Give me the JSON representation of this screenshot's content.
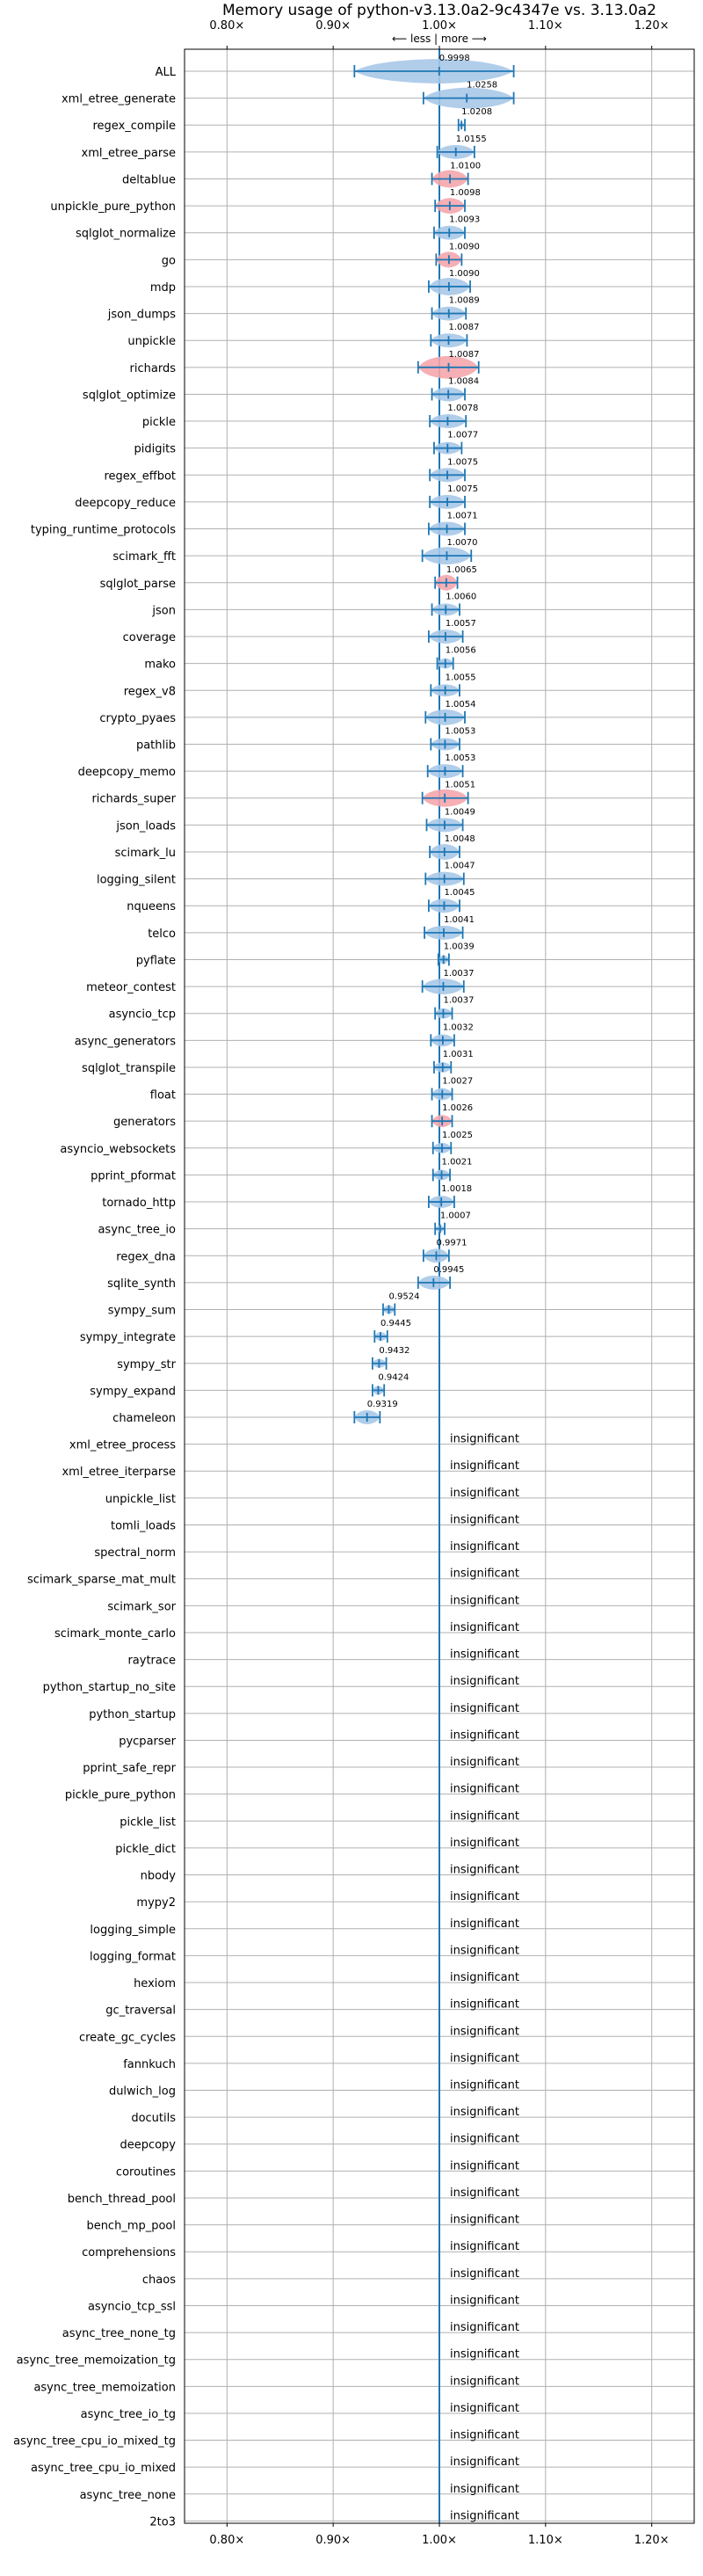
{
  "chart_data": {
    "type": "violin",
    "title": "Memory usage of python-v3.13.0a2-9c4347e vs. 3.13.0a2",
    "annotation": "⟵ less | more ⟶",
    "xlim": [
      0.76,
      1.24
    ],
    "xticks": [
      0.8,
      0.9,
      1.0,
      1.1,
      1.2
    ],
    "xtick_labels": [
      "0.80×",
      "0.90×",
      "1.00×",
      "1.10×",
      "1.20×"
    ],
    "reference_line": 1.0,
    "insignificant_text": "insignificant",
    "colors": {
      "line": "#1f77b4",
      "violin_default": "#a7c8e8",
      "violin_highlight": "#f4a6ad",
      "grid": "#b0b0b0"
    },
    "benchmarks": [
      {
        "name": "ALL",
        "value": 0.9998,
        "label": "0.9998",
        "lo": 0.92,
        "hi": 1.07,
        "color": "blue",
        "width": 14
      },
      {
        "name": "xml_etree_generate",
        "value": 1.0258,
        "label": "1.0258",
        "lo": 0.985,
        "hi": 1.07,
        "color": "blue",
        "width": 12
      },
      {
        "name": "regex_compile",
        "value": 1.0208,
        "label": "1.0208",
        "lo": 1.018,
        "hi": 1.024,
        "color": "blue",
        "width": 3
      },
      {
        "name": "xml_etree_parse",
        "value": 1.0155,
        "label": "1.0155",
        "lo": 0.998,
        "hi": 1.033,
        "color": "blue",
        "width": 8
      },
      {
        "name": "deltablue",
        "value": 1.01,
        "label": "1.0100",
        "lo": 0.993,
        "hi": 1.027,
        "color": "red",
        "width": 10
      },
      {
        "name": "unpickle_pure_python",
        "value": 1.0098,
        "label": "1.0098",
        "lo": 0.996,
        "hi": 1.024,
        "color": "red",
        "width": 9
      },
      {
        "name": "sqlglot_normalize",
        "value": 1.0093,
        "label": "1.0093",
        "lo": 0.995,
        "hi": 1.024,
        "color": "blue",
        "width": 8
      },
      {
        "name": "go",
        "value": 1.009,
        "label": "1.0090",
        "lo": 0.997,
        "hi": 1.021,
        "color": "red",
        "width": 9
      },
      {
        "name": "mdp",
        "value": 1.009,
        "label": "1.0090",
        "lo": 0.99,
        "hi": 1.029,
        "color": "blue",
        "width": 10
      },
      {
        "name": "json_dumps",
        "value": 1.0089,
        "label": "1.0089",
        "lo": 0.993,
        "hi": 1.025,
        "color": "blue",
        "width": 8
      },
      {
        "name": "unpickle",
        "value": 1.0087,
        "label": "1.0087",
        "lo": 0.992,
        "hi": 1.026,
        "color": "blue",
        "width": 8
      },
      {
        "name": "richards",
        "value": 1.0087,
        "label": "1.0087",
        "lo": 0.98,
        "hi": 1.037,
        "color": "red",
        "width": 13
      },
      {
        "name": "sqlglot_optimize",
        "value": 1.0084,
        "label": "1.0084",
        "lo": 0.993,
        "hi": 1.024,
        "color": "blue",
        "width": 8
      },
      {
        "name": "pickle",
        "value": 1.0078,
        "label": "1.0078",
        "lo": 0.991,
        "hi": 1.025,
        "color": "blue",
        "width": 8
      },
      {
        "name": "pidigits",
        "value": 1.0077,
        "label": "1.0077",
        "lo": 0.995,
        "hi": 1.021,
        "color": "blue",
        "width": 7
      },
      {
        "name": "regex_effbot",
        "value": 1.0075,
        "label": "1.0075",
        "lo": 0.991,
        "hi": 1.024,
        "color": "blue",
        "width": 8
      },
      {
        "name": "deepcopy_reduce",
        "value": 1.0075,
        "label": "1.0075",
        "lo": 0.991,
        "hi": 1.024,
        "color": "blue",
        "width": 8
      },
      {
        "name": "typing_runtime_protocols",
        "value": 1.0071,
        "label": "1.0071",
        "lo": 0.99,
        "hi": 1.024,
        "color": "blue",
        "width": 8
      },
      {
        "name": "scimark_fft",
        "value": 1.007,
        "label": "1.0070",
        "lo": 0.984,
        "hi": 1.03,
        "color": "blue",
        "width": 10
      },
      {
        "name": "sqlglot_parse",
        "value": 1.0065,
        "label": "1.0065",
        "lo": 0.996,
        "hi": 1.017,
        "color": "red",
        "width": 9
      },
      {
        "name": "json",
        "value": 1.006,
        "label": "1.0060",
        "lo": 0.993,
        "hi": 1.019,
        "color": "blue",
        "width": 7
      },
      {
        "name": "coverage",
        "value": 1.0057,
        "label": "1.0057",
        "lo": 0.99,
        "hi": 1.022,
        "color": "blue",
        "width": 8
      },
      {
        "name": "mako",
        "value": 1.0056,
        "label": "1.0056",
        "lo": 0.998,
        "hi": 1.013,
        "color": "blue",
        "width": 6
      },
      {
        "name": "regex_v8",
        "value": 1.0055,
        "label": "1.0055",
        "lo": 0.992,
        "hi": 1.019,
        "color": "blue",
        "width": 7
      },
      {
        "name": "crypto_pyaes",
        "value": 1.0054,
        "label": "1.0054",
        "lo": 0.987,
        "hi": 1.024,
        "color": "blue",
        "width": 9
      },
      {
        "name": "pathlib",
        "value": 1.0053,
        "label": "1.0053",
        "lo": 0.992,
        "hi": 1.019,
        "color": "blue",
        "width": 7
      },
      {
        "name": "deepcopy_memo",
        "value": 1.0053,
        "label": "1.0053",
        "lo": 0.989,
        "hi": 1.022,
        "color": "blue",
        "width": 8
      },
      {
        "name": "richards_super",
        "value": 1.0051,
        "label": "1.0051",
        "lo": 0.984,
        "hi": 1.027,
        "color": "red",
        "width": 10
      },
      {
        "name": "json_loads",
        "value": 1.0049,
        "label": "1.0049",
        "lo": 0.988,
        "hi": 1.022,
        "color": "blue",
        "width": 8
      },
      {
        "name": "scimark_lu",
        "value": 1.0048,
        "label": "1.0048",
        "lo": 0.991,
        "hi": 1.019,
        "color": "blue",
        "width": 9
      },
      {
        "name": "logging_silent",
        "value": 1.0047,
        "label": "1.0047",
        "lo": 0.987,
        "hi": 1.023,
        "color": "blue",
        "width": 8
      },
      {
        "name": "nqueens",
        "value": 1.0045,
        "label": "1.0045",
        "lo": 0.99,
        "hi": 1.019,
        "color": "blue",
        "width": 8
      },
      {
        "name": "telco",
        "value": 1.0041,
        "label": "1.0041",
        "lo": 0.986,
        "hi": 1.022,
        "color": "blue",
        "width": 8
      },
      {
        "name": "pyflate",
        "value": 1.0039,
        "label": "1.0039",
        "lo": 0.999,
        "hi": 1.009,
        "color": "blue",
        "width": 5
      },
      {
        "name": "meteor_contest",
        "value": 1.0037,
        "label": "1.0037",
        "lo": 0.984,
        "hi": 1.023,
        "color": "blue",
        "width": 9
      },
      {
        "name": "asyncio_tcp",
        "value": 1.0037,
        "label": "1.0037",
        "lo": 0.996,
        "hi": 1.012,
        "color": "blue",
        "width": 6
      },
      {
        "name": "async_generators",
        "value": 1.0032,
        "label": "1.0032",
        "lo": 0.992,
        "hi": 1.014,
        "color": "blue",
        "width": 7
      },
      {
        "name": "sqlglot_transpile",
        "value": 1.0031,
        "label": "1.0031",
        "lo": 0.995,
        "hi": 1.011,
        "color": "blue",
        "width": 6
      },
      {
        "name": "float",
        "value": 1.0027,
        "label": "1.0027",
        "lo": 0.993,
        "hi": 1.012,
        "color": "blue",
        "width": 7
      },
      {
        "name": "generators",
        "value": 1.0026,
        "label": "1.0026",
        "lo": 0.993,
        "hi": 1.012,
        "color": "red",
        "width": 7
      },
      {
        "name": "asyncio_websockets",
        "value": 1.0025,
        "label": "1.0025",
        "lo": 0.994,
        "hi": 1.011,
        "color": "blue",
        "width": 6
      },
      {
        "name": "pprint_pformat",
        "value": 1.0021,
        "label": "1.0021",
        "lo": 0.994,
        "hi": 1.01,
        "color": "blue",
        "width": 6
      },
      {
        "name": "tornado_http",
        "value": 1.0018,
        "label": "1.0018",
        "lo": 0.99,
        "hi": 1.014,
        "color": "blue",
        "width": 7
      },
      {
        "name": "async_tree_io",
        "value": 1.0007,
        "label": "1.0007",
        "lo": 0.996,
        "hi": 1.005,
        "color": "blue",
        "width": 4
      },
      {
        "name": "regex_dna",
        "value": 0.9971,
        "label": "0.9971",
        "lo": 0.985,
        "hi": 1.009,
        "color": "blue",
        "width": 8
      },
      {
        "name": "sqlite_synth",
        "value": 0.9945,
        "label": "0.9945",
        "lo": 0.98,
        "hi": 1.01,
        "color": "blue",
        "width": 8
      },
      {
        "name": "sympy_sum",
        "value": 0.9524,
        "label": "0.9524",
        "lo": 0.947,
        "hi": 0.958,
        "color": "blue",
        "width": 5
      },
      {
        "name": "sympy_integrate",
        "value": 0.9445,
        "label": "0.9445",
        "lo": 0.939,
        "hi": 0.951,
        "color": "blue",
        "width": 5
      },
      {
        "name": "sympy_str",
        "value": 0.9432,
        "label": "0.9432",
        "lo": 0.937,
        "hi": 0.95,
        "color": "blue",
        "width": 5
      },
      {
        "name": "sympy_expand",
        "value": 0.9424,
        "label": "0.9424",
        "lo": 0.937,
        "hi": 0.948,
        "color": "blue",
        "width": 5
      },
      {
        "name": "chameleon",
        "value": 0.9319,
        "label": "0.9319",
        "lo": 0.92,
        "hi": 0.944,
        "color": "blue",
        "width": 8
      },
      {
        "name": "xml_etree_process",
        "insignificant": true
      },
      {
        "name": "xml_etree_iterparse",
        "insignificant": true
      },
      {
        "name": "unpickle_list",
        "insignificant": true
      },
      {
        "name": "tomli_loads",
        "insignificant": true
      },
      {
        "name": "spectral_norm",
        "insignificant": true
      },
      {
        "name": "scimark_sparse_mat_mult",
        "insignificant": true
      },
      {
        "name": "scimark_sor",
        "insignificant": true
      },
      {
        "name": "scimark_monte_carlo",
        "insignificant": true
      },
      {
        "name": "raytrace",
        "insignificant": true
      },
      {
        "name": "python_startup_no_site",
        "insignificant": true
      },
      {
        "name": "python_startup",
        "insignificant": true
      },
      {
        "name": "pycparser",
        "insignificant": true
      },
      {
        "name": "pprint_safe_repr",
        "insignificant": true
      },
      {
        "name": "pickle_pure_python",
        "insignificant": true
      },
      {
        "name": "pickle_list",
        "insignificant": true
      },
      {
        "name": "pickle_dict",
        "insignificant": true
      },
      {
        "name": "nbody",
        "insignificant": true
      },
      {
        "name": "mypy2",
        "insignificant": true
      },
      {
        "name": "logging_simple",
        "insignificant": true
      },
      {
        "name": "logging_format",
        "insignificant": true
      },
      {
        "name": "hexiom",
        "insignificant": true
      },
      {
        "name": "gc_traversal",
        "insignificant": true
      },
      {
        "name": "create_gc_cycles",
        "insignificant": true
      },
      {
        "name": "fannkuch",
        "insignificant": true
      },
      {
        "name": "dulwich_log",
        "insignificant": true
      },
      {
        "name": "docutils",
        "insignificant": true
      },
      {
        "name": "deepcopy",
        "insignificant": true
      },
      {
        "name": "coroutines",
        "insignificant": true
      },
      {
        "name": "bench_thread_pool",
        "insignificant": true
      },
      {
        "name": "bench_mp_pool",
        "insignificant": true
      },
      {
        "name": "comprehensions",
        "insignificant": true
      },
      {
        "name": "chaos",
        "insignificant": true
      },
      {
        "name": "asyncio_tcp_ssl",
        "insignificant": true
      },
      {
        "name": "async_tree_none_tg",
        "insignificant": true
      },
      {
        "name": "async_tree_memoization_tg",
        "insignificant": true
      },
      {
        "name": "async_tree_memoization",
        "insignificant": true
      },
      {
        "name": "async_tree_io_tg",
        "insignificant": true
      },
      {
        "name": "async_tree_cpu_io_mixed_tg",
        "insignificant": true
      },
      {
        "name": "async_tree_cpu_io_mixed",
        "insignificant": true
      },
      {
        "name": "async_tree_none",
        "insignificant": true
      },
      {
        "name": "2to3",
        "insignificant": true
      }
    ]
  }
}
